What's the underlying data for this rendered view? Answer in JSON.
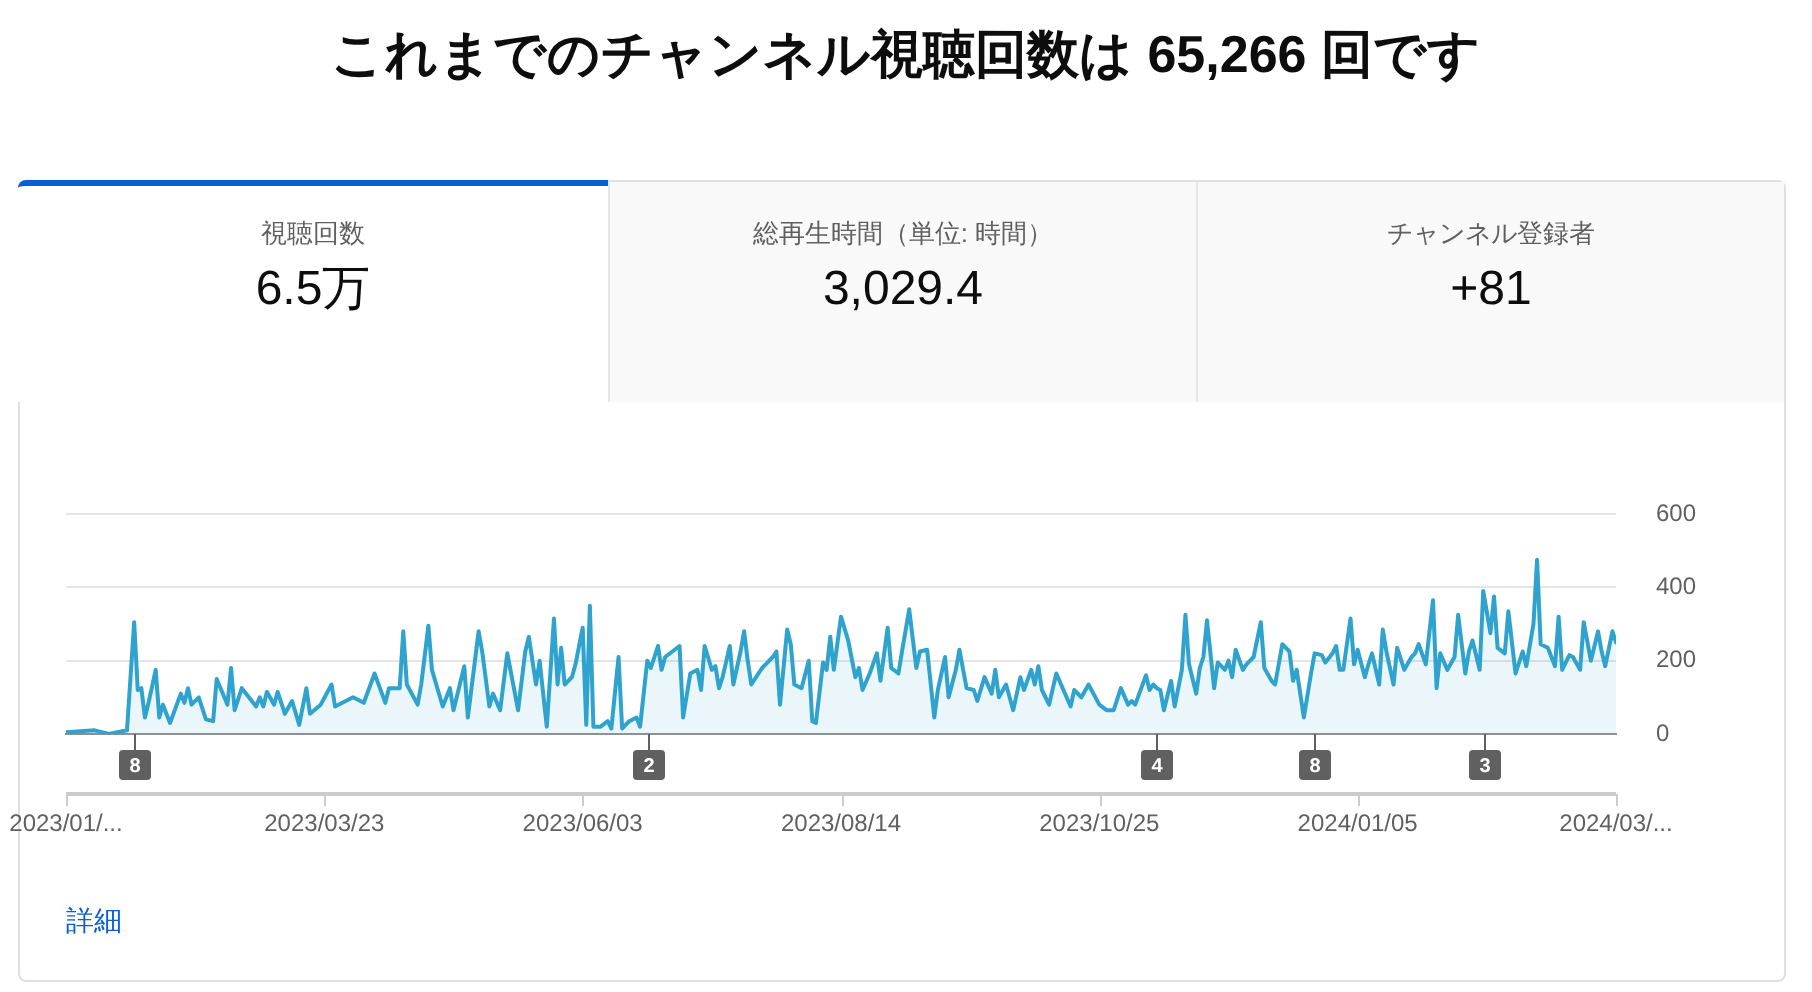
{
  "chart_data": [
    {
      "type": "other",
      "title": "これまでのチャンネル視聴回数は 65,266 回です",
      "annotations": [
        "視聴回数",
        "6.5万",
        "総再生時間（単位: 時間）",
        "3,029.4",
        "チャンネル登録者",
        "+81"
      ]
    },
    {
      "type": "area",
      "color": "#2fa3cd",
      "marker": "none",
      "grid": "y",
      "xlim": [
        "2023-01-10",
        "2024-03-17"
      ],
      "xticks": [
        {
          "value": "2023-01-10",
          "label": "2023/01/..."
        },
        {
          "value": "2023-03-23",
          "label": "2023/03/23"
        },
        {
          "value": "2023-06-03",
          "label": "2023/06/03"
        },
        {
          "value": "2023-08-14",
          "label": "2023/08/14"
        },
        {
          "value": "2023-10-25",
          "label": "2023/10/25"
        },
        {
          "value": "2024-01-05",
          "label": "2024/01/05"
        },
        {
          "value": "2024-03-17",
          "label": "2024/03/..."
        }
      ],
      "ylim": [
        0,
        600
      ],
      "yticks": [
        0,
        200,
        400,
        600
      ],
      "x": [
        "2023-01-10",
        "2023-01-18",
        "2023-01-22",
        "2023-01-27",
        "2023-01-29",
        "2023-01-30",
        "2023-01-31",
        "2023-02-01",
        "2023-02-02",
        "2023-02-04",
        "2023-02-05",
        "2023-02-06",
        "2023-02-08",
        "2023-02-11",
        "2023-02-12",
        "2023-02-13",
        "2023-02-14",
        "2023-02-16",
        "2023-02-18",
        "2023-02-20",
        "2023-02-21",
        "2023-02-24",
        "2023-02-25",
        "2023-02-26",
        "2023-02-28",
        "2023-03-04",
        "2023-03-05",
        "2023-03-06",
        "2023-03-07",
        "2023-03-09",
        "2023-03-10",
        "2023-03-12",
        "2023-03-14",
        "2023-03-16",
        "2023-03-18",
        "2023-03-19",
        "2023-03-22",
        "2023-03-25",
        "2023-03-26",
        "2023-03-31",
        "2023-04-03",
        "2023-04-06",
        "2023-04-09",
        "2023-04-10",
        "2023-04-13",
        "2023-04-14",
        "2023-04-15",
        "2023-04-18",
        "2023-04-19",
        "2023-04-21",
        "2023-04-22",
        "2023-04-25",
        "2023-04-27",
        "2023-04-28",
        "2023-05-01",
        "2023-05-02",
        "2023-05-05",
        "2023-05-06",
        "2023-05-08",
        "2023-05-09",
        "2023-05-11",
        "2023-05-13",
        "2023-05-16",
        "2023-05-18",
        "2023-05-19",
        "2023-05-21",
        "2023-05-22",
        "2023-05-24",
        "2023-05-26",
        "2023-05-27",
        "2023-05-28",
        "2023-05-29",
        "2023-05-31",
        "2023-06-01",
        "2023-06-03",
        "2023-06-04",
        "2023-06-05",
        "2023-06-06",
        "2023-06-08",
        "2023-06-10",
        "2023-06-11",
        "2023-06-13",
        "2023-06-14",
        "2023-06-16",
        "2023-06-18",
        "2023-06-19",
        "2023-06-21",
        "2023-06-22",
        "2023-06-24",
        "2023-06-25",
        "2023-06-26",
        "2023-06-30",
        "2023-07-01",
        "2023-07-03",
        "2023-07-05",
        "2023-07-06",
        "2023-07-07",
        "2023-07-09",
        "2023-07-10",
        "2023-07-11",
        "2023-07-12",
        "2023-07-14",
        "2023-07-15",
        "2023-07-17",
        "2023-07-18",
        "2023-07-19",
        "2023-07-20",
        "2023-07-22",
        "2023-07-23",
        "2023-07-24",
        "2023-07-26",
        "2023-07-27",
        "2023-07-28",
        "2023-07-30",
        "2023-07-31",
        "2023-08-01",
        "2023-08-03",
        "2023-08-05",
        "2023-08-06",
        "2023-08-07",
        "2023-08-09",
        "2023-08-10",
        "2023-08-11",
        "2023-08-12",
        "2023-08-14",
        "2023-08-16",
        "2023-08-18",
        "2023-08-19",
        "2023-08-20",
        "2023-08-22",
        "2023-08-24",
        "2023-08-25",
        "2023-08-27",
        "2023-08-28",
        "2023-08-30",
        "2023-08-31",
        "2023-09-02",
        "2023-09-04",
        "2023-09-05",
        "2023-09-07",
        "2023-09-09",
        "2023-09-10",
        "2023-09-12",
        "2023-09-13",
        "2023-09-15",
        "2023-09-16",
        "2023-09-18",
        "2023-09-20",
        "2023-09-21",
        "2023-09-23",
        "2023-09-25",
        "2023-09-26",
        "2023-09-27",
        "2023-09-29",
        "2023-10-01",
        "2023-10-03",
        "2023-10-04",
        "2023-10-06",
        "2023-10-07",
        "2023-10-08",
        "2023-10-09",
        "2023-10-11",
        "2023-10-13",
        "2023-10-15",
        "2023-10-17",
        "2023-10-18",
        "2023-10-20",
        "2023-10-22",
        "2023-10-25",
        "2023-10-27",
        "2023-10-29",
        "2023-10-31",
        "2023-11-02",
        "2023-11-03",
        "2023-11-04",
        "2023-11-07",
        "2023-11-08",
        "2023-11-09",
        "2023-11-10",
        "2023-11-11",
        "2023-11-12",
        "2023-11-14",
        "2023-11-15",
        "2023-11-17",
        "2023-11-18",
        "2023-11-19",
        "2023-11-21",
        "2023-11-22",
        "2023-11-23",
        "2023-11-24",
        "2023-11-26",
        "2023-11-27",
        "2023-11-29",
        "2023-11-30",
        "2023-12-01",
        "2023-12-02",
        "2023-12-04",
        "2023-12-05",
        "2023-12-07",
        "2023-12-09",
        "2023-12-10",
        "2023-12-12",
        "2023-12-13",
        "2023-12-15",
        "2023-12-17",
        "2023-12-18",
        "2023-12-19",
        "2023-12-21",
        "2023-12-23",
        "2023-12-24",
        "2023-12-26",
        "2023-12-27",
        "2023-12-29",
        "2023-12-30",
        "2023-12-31",
        "2024-01-01",
        "2024-01-03",
        "2024-01-04",
        "2024-01-05",
        "2024-01-07",
        "2024-01-08",
        "2024-01-09",
        "2024-01-11",
        "2024-01-12",
        "2024-01-13",
        "2024-01-15",
        "2024-01-16",
        "2024-01-18",
        "2024-01-20",
        "2024-01-21",
        "2024-01-22",
        "2024-01-24",
        "2024-01-26",
        "2024-01-27",
        "2024-01-28",
        "2024-01-30",
        "2024-02-01",
        "2024-02-02",
        "2024-02-04",
        "2024-02-05",
        "2024-02-06",
        "2024-02-08",
        "2024-02-09",
        "2024-02-11",
        "2024-02-12",
        "2024-02-13",
        "2024-02-15",
        "2024-02-16",
        "2024-02-18",
        "2024-02-20",
        "2024-02-21",
        "2024-02-23",
        "2024-02-24",
        "2024-02-25",
        "2024-02-27",
        "2024-02-29",
        "2024-03-01",
        "2024-03-02",
        "2024-03-04",
        "2024-03-05",
        "2024-03-07",
        "2024-03-08",
        "2024-03-10",
        "2024-03-12",
        "2024-03-13",
        "2024-03-14",
        "2024-03-16",
        "2024-03-17"
      ],
      "values": [
        5,
        10,
        0,
        10,
        305,
        120,
        125,
        45,
        85,
        175,
        45,
        80,
        30,
        110,
        85,
        125,
        80,
        100,
        40,
        35,
        150,
        80,
        180,
        65,
        125,
        75,
        100,
        75,
        115,
        80,
        115,
        55,
        90,
        25,
        125,
        55,
        80,
        135,
        75,
        100,
        85,
        165,
        85,
        125,
        125,
        280,
        135,
        80,
        135,
        295,
        175,
        75,
        125,
        65,
        185,
        45,
        280,
        225,
        75,
        110,
        65,
        220,
        65,
        225,
        265,
        135,
        200,
        20,
        315,
        135,
        235,
        135,
        155,
        190,
        290,
        25,
        350,
        20,
        20,
        35,
        15,
        210,
        15,
        35,
        45,
        20,
        200,
        180,
        240,
        175,
        210,
        240,
        45,
        165,
        175,
        120,
        240,
        175,
        185,
        125,
        155,
        240,
        135,
        225,
        280,
        200,
        135,
        165,
        180,
        190,
        210,
        225,
        80,
        285,
        245,
        135,
        125,
        200,
        35,
        30,
        195,
        175,
        265,
        175,
        320,
        255,
        155,
        180,
        120,
        165,
        220,
        145,
        290,
        180,
        165,
        225,
        340,
        180,
        225,
        230,
        45,
        120,
        210,
        100,
        175,
        230,
        125,
        120,
        90,
        155,
        110,
        175,
        100,
        135,
        65,
        155,
        120,
        175,
        135,
        185,
        120,
        80,
        165,
        120,
        75,
        120,
        100,
        135,
        80,
        65,
        65,
        125,
        80,
        90,
        80,
        160,
        120,
        135,
        125,
        120,
        65,
        145,
        75,
        175,
        325,
        190,
        110,
        180,
        210,
        310,
        125,
        195,
        175,
        200,
        155,
        230,
        175,
        190,
        210,
        305,
        180,
        145,
        135,
        245,
        225,
        145,
        175,
        45,
        165,
        220,
        215,
        195,
        220,
        240,
        175,
        175,
        315,
        190,
        230,
        155,
        190,
        220,
        135,
        285,
        225,
        135,
        235,
        175,
        210,
        220,
        245,
        190,
        365,
        125,
        220,
        175,
        210,
        325,
        165,
        225,
        255,
        175,
        390,
        275,
        375,
        235,
        220,
        335,
        165,
        225,
        185,
        300,
        475,
        245,
        235,
        185,
        320,
        175,
        215,
        210,
        175,
        305,
        200,
        280,
        225,
        185,
        280,
        250
      ],
      "ref_lines": [
        {
          "axis": "x",
          "value": "2023-01-29",
          "label": "8",
          "color": "#606060"
        },
        {
          "axis": "x",
          "value": "2023-06-21",
          "label": "2",
          "color": "#606060"
        },
        {
          "axis": "x",
          "value": "2023-11-10",
          "label": "4",
          "color": "#606060"
        },
        {
          "axis": "x",
          "value": "2023-12-24",
          "label": "8",
          "color": "#606060"
        },
        {
          "axis": "x",
          "value": "2024-02-09",
          "label": "3",
          "color": "#606060"
        }
      ],
      "annotations": [
        "詳細"
      ]
    }
  ]
}
